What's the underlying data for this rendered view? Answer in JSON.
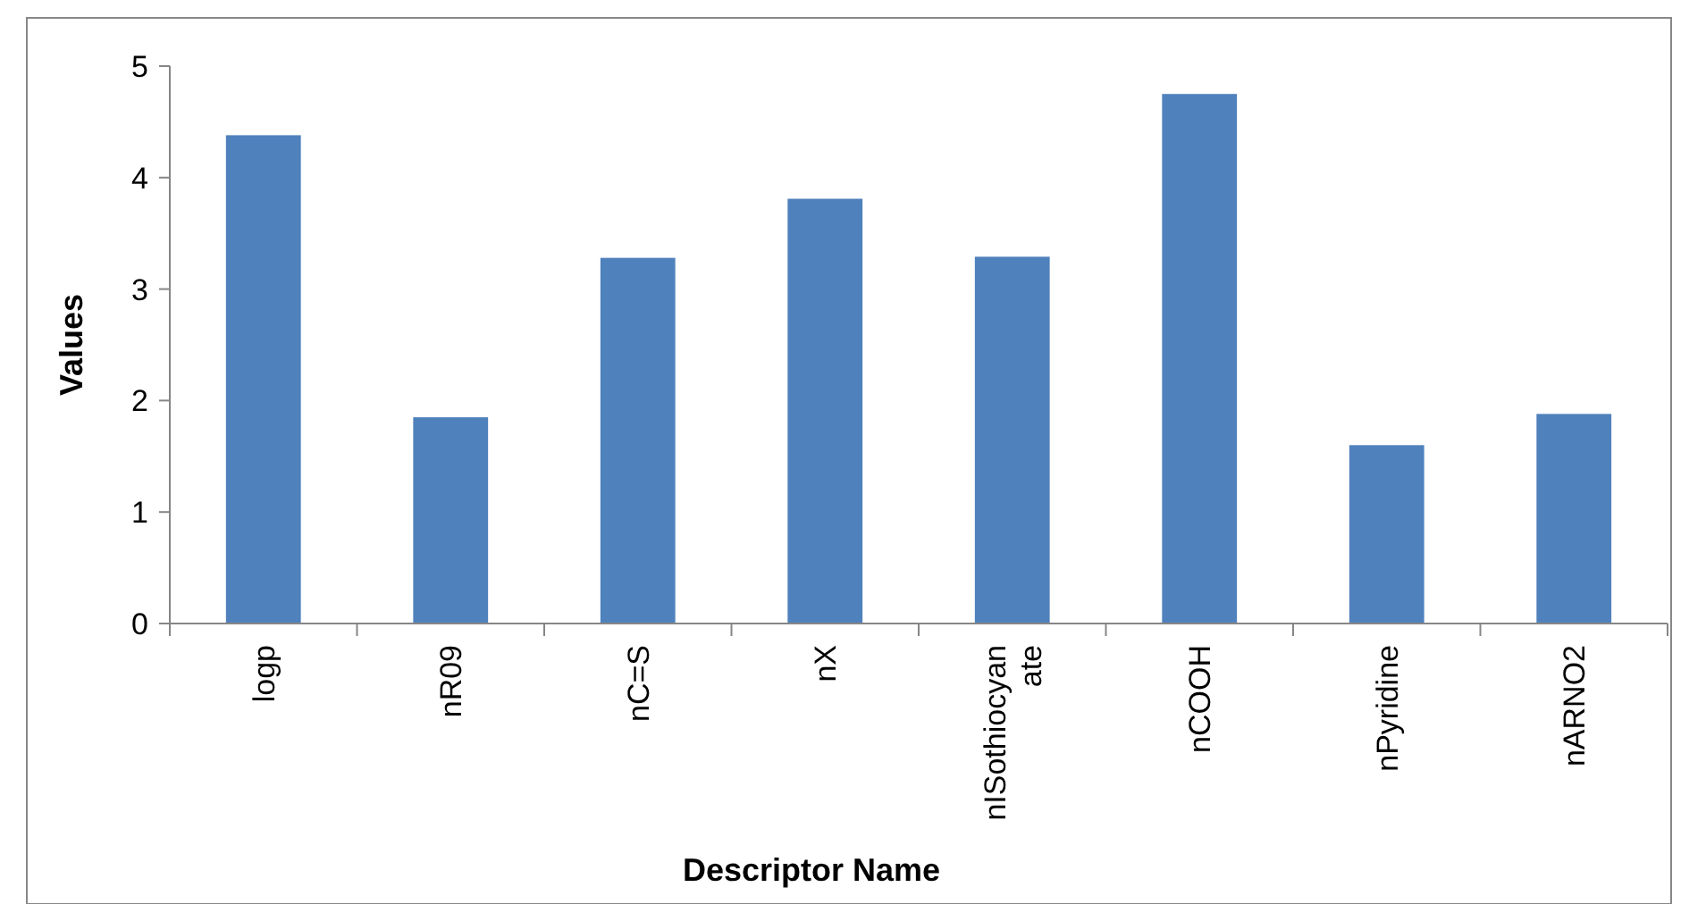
{
  "chart_data": {
    "type": "bar",
    "xlabel": "Descriptor Name",
    "ylabel": "Values",
    "categories": [
      "logp",
      "nR09",
      "nC=S",
      "nX",
      "nISothiocyanate",
      "nCOOH",
      "nPyridine",
      "nARNO2"
    ],
    "values": [
      4.38,
      1.85,
      3.28,
      3.81,
      3.29,
      4.75,
      1.6,
      1.88
    ],
    "color": "#4f81bd",
    "ylim": [
      0,
      5
    ],
    "yticks": [
      0,
      1,
      2,
      3,
      4,
      5
    ],
    "grid": false
  }
}
